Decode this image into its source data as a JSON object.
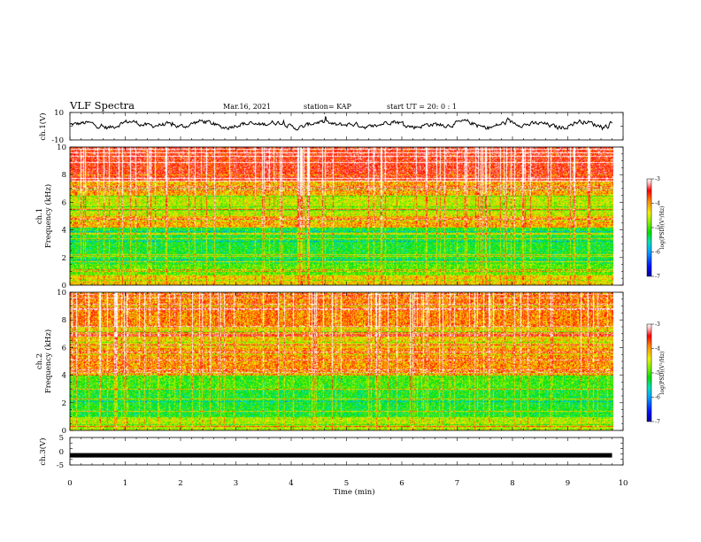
{
  "header": {
    "title": "VLF Spectra",
    "date": "Mar.16, 2021",
    "station": "station= KAP",
    "start": "start  UT =   20: 0  : 1"
  },
  "colors": {
    "colormap": [
      "#0000a0",
      "#0010ff",
      "#00a0ff",
      "#00e0c0",
      "#00e000",
      "#80f000",
      "#f0f000",
      "#ff8000",
      "#ff0000",
      "#ffb0b0",
      "#ffffff"
    ],
    "trace": "#000000",
    "axis": "#000000"
  },
  "chart_data": [
    {
      "type": "line",
      "name": "ch1-waveform",
      "ylabel": "ch.1(V)",
      "ylim": [
        -10,
        10
      ],
      "yticks": [
        "10",
        "-10"
      ],
      "xlim": [
        0,
        10
      ],
      "data_extent_min": 9.8,
      "description_level": "noisy waveform roughly between -5 and 8 V"
    },
    {
      "type": "heatmap",
      "name": "ch1-spectrogram",
      "ylabel": "ch.1",
      "ylabel2": "Frequency (kHz)",
      "ylim": [
        0,
        10
      ],
      "yticks": [
        "0",
        "2",
        "4",
        "6",
        "8",
        "10"
      ],
      "xlim": [
        0,
        10
      ],
      "data_extent_min": 9.8,
      "colorbar": {
        "label": "log(PSD)(V²/Hz)",
        "range": [
          -7,
          -3
        ],
        "ticks": [
          "-3",
          "-4",
          "-5",
          "-6",
          "-7"
        ]
      }
    },
    {
      "type": "heatmap",
      "name": "ch2-spectrogram",
      "ylabel": "ch.2",
      "ylabel2": "Frequency (kHz)",
      "ylim": [
        0,
        10
      ],
      "yticks": [
        "0",
        "2",
        "4",
        "6",
        "8",
        "10"
      ],
      "xlim": [
        0,
        10
      ],
      "data_extent_min": 9.8,
      "colorbar": {
        "label": "log(PSD)(V²/Hz)",
        "range": [
          -7,
          -3
        ],
        "ticks": [
          "-3",
          "-4",
          "-5",
          "-6",
          "-7"
        ]
      }
    },
    {
      "type": "line",
      "name": "ch3-waveform",
      "ylabel": "ch.3(V)",
      "ylim": [
        -5,
        5
      ],
      "yticks": [
        "5",
        "0",
        "-5"
      ],
      "xlim": [
        0,
        10
      ],
      "xlabel": "Time  (min)",
      "xticks": [
        "0",
        "1",
        "2",
        "3",
        "4",
        "5",
        "6",
        "7",
        "8",
        "9",
        "10"
      ],
      "data_extent_min": 9.8,
      "level_v": -1.5
    }
  ]
}
